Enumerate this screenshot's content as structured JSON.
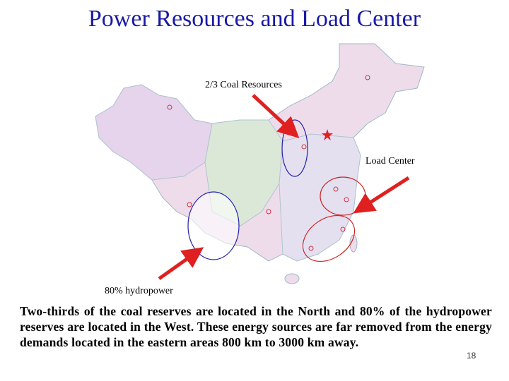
{
  "title": "Power Resources and Load Center",
  "map": {
    "labels": [
      "2/3 Coal Resources",
      "Load Center",
      "80% hydropower"
    ]
  },
  "body": "Two-thirds of the coal reserves are located in the North and 80% of the hydropower reserves are located in the West. These energy sources are far removed from the energy demands located in the eastern areas 800 km to 3000 km away.",
  "page_number": "18"
}
